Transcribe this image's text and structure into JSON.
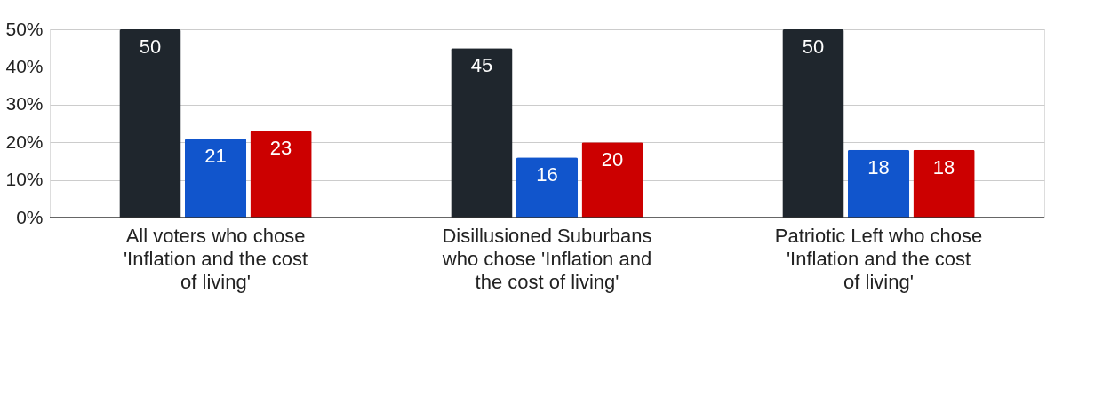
{
  "chart_data": {
    "type": "bar",
    "categories": [
      "All voters who chose 'Inflation and the cost of living'",
      "Disillusioned Suburbans who chose 'Inflation and the cost of living'",
      "Patriotic Left who chose 'Inflation and the cost of living'"
    ],
    "series": [
      {
        "color": "#1f262d",
        "values": [
          50,
          45,
          50
        ]
      },
      {
        "color": "#1155cc",
        "values": [
          21,
          16,
          18
        ]
      },
      {
        "color": "#cc0000",
        "values": [
          23,
          20,
          18
        ]
      }
    ],
    "ylim": [
      0,
      50
    ],
    "yticks": [
      {
        "value": 0,
        "label": "0%"
      },
      {
        "value": 10,
        "label": "10%"
      },
      {
        "value": 20,
        "label": "20%"
      },
      {
        "value": 30,
        "label": "30%"
      },
      {
        "value": 40,
        "label": "40%"
      },
      {
        "value": 50,
        "label": "50%"
      }
    ],
    "grid": "y",
    "legend": false,
    "data_labels": true
  }
}
